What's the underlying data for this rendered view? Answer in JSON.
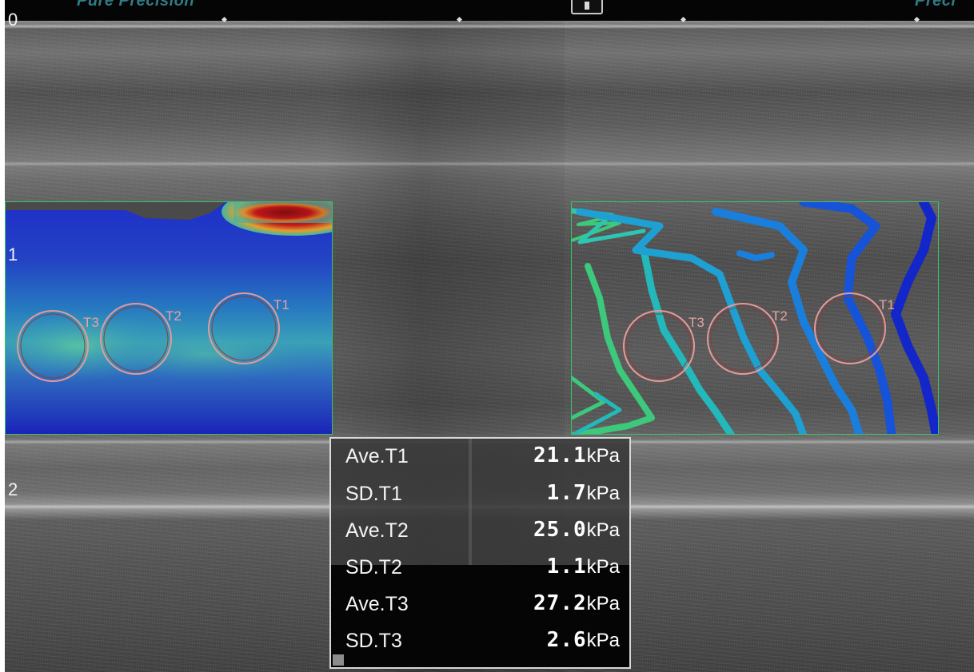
{
  "header": {
    "left_logo": "Pure Precision",
    "right_logo": "Preci"
  },
  "depth_scale": [
    "0",
    "1",
    "2"
  ],
  "left_image": {
    "rois": [
      "T3",
      "T2",
      "T1"
    ]
  },
  "right_image": {
    "rois": [
      "T3",
      "T2",
      "T1"
    ]
  },
  "measurements": [
    {
      "label": "Ave.T1",
      "value": "21.1",
      "unit": "kPa"
    },
    {
      "label": "SD.T1",
      "value": "1.7",
      "unit": "kPa"
    },
    {
      "label": "Ave.T2",
      "value": "25.0",
      "unit": "kPa"
    },
    {
      "label": "SD.T2",
      "value": "1.1",
      "unit": "kPa"
    },
    {
      "label": "Ave.T3",
      "value": "27.2",
      "unit": "kPa"
    },
    {
      "label": "SD.T3",
      "value": "2.6",
      "unit": "kPa"
    }
  ],
  "colors": {
    "roi_circle": "#e49a9a",
    "roi_box": "#37c46a",
    "elasto_low": "#1b2fc4",
    "elasto_mid": "#2fb3a8",
    "elasto_high": "#b8121a"
  }
}
